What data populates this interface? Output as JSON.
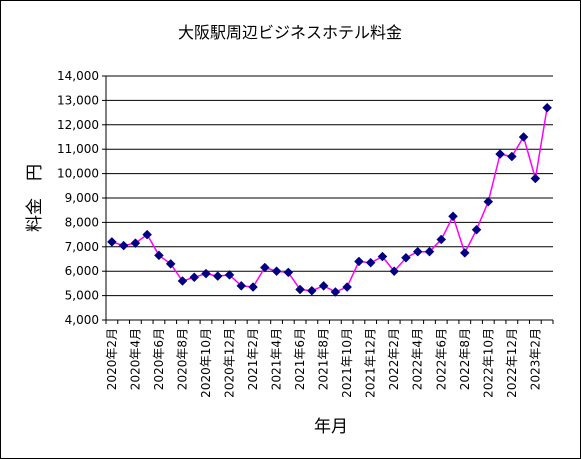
{
  "chart_data": {
    "type": "line",
    "title": "大阪駅周辺ビジネスホテル料金",
    "xlabel": "年月",
    "ylabel": "料金　円",
    "ylim": [
      4000,
      14000
    ],
    "y_ticks": [
      "4,000",
      "5,000",
      "6,000",
      "7,000",
      "8,000",
      "9,000",
      "10,000",
      "11,000",
      "12,000",
      "13,000",
      "14,000"
    ],
    "x_tick_labels": [
      "2020年2月",
      "2020年4月",
      "2020年6月",
      "2020年8月",
      "2020年10月",
      "2020年12月",
      "2021年2月",
      "2021年4月",
      "2021年6月",
      "2021年8月",
      "2021年10月",
      "2021年12月",
      "2022年2月",
      "2022年4月",
      "2022年6月",
      "2022年8月",
      "2022年10月",
      "2022年12月",
      "2023年2月"
    ],
    "grid": "horizontal",
    "colors": {
      "line": "#ff00ff",
      "marker": "#000080",
      "grid": "#000000"
    },
    "series": [
      {
        "values": [
          7200,
          7050,
          7150,
          7500,
          6650,
          6300,
          5600,
          5750,
          5900,
          5800,
          5850,
          5400,
          5350,
          6150,
          6000,
          5950,
          5250,
          5200,
          5400,
          5150,
          5350,
          6400,
          6350,
          6600,
          6000,
          6550,
          6800,
          6800,
          7300,
          8250,
          6750,
          7700,
          8850,
          10800,
          10700,
          11500,
          9800,
          12700
        ]
      }
    ]
  }
}
